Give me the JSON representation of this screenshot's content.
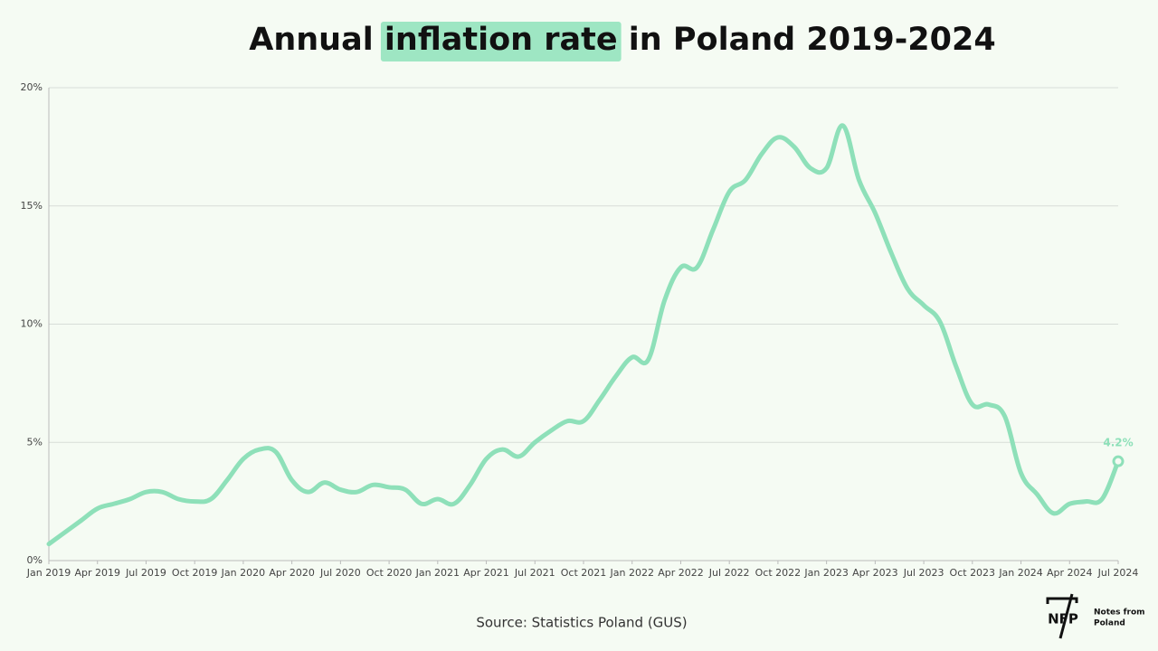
{
  "chart_data": {
    "type": "line",
    "title": "Annual inflation rate in Poland 2019-2024",
    "title_highlight": "inflation rate",
    "highlight_color": "#9ee6c3",
    "source": "Source: Statistics Poland (GUS)",
    "categories": [
      "Jan 2019",
      null,
      null,
      "Apr 2019",
      null,
      null,
      "Jul 2019",
      null,
      null,
      "Oct 2019",
      null,
      null,
      "Jan 2020",
      null,
      null,
      "Apr 2020",
      null,
      null,
      "Jul 2020",
      null,
      null,
      "Oct 2020",
      null,
      null,
      "Jan 2021",
      null,
      null,
      "Apr 2021",
      null,
      null,
      "Jul 2021",
      null,
      null,
      "Oct 2021",
      null,
      null,
      "Jan 2022",
      null,
      null,
      "Apr 2022",
      null,
      null,
      "Jul 2022",
      null,
      null,
      "Oct 2022",
      null,
      null,
      "Jan 2023",
      null,
      null,
      "Apr 2023",
      null,
      null,
      "Jul 2023",
      null,
      null,
      "Oct 2023",
      null,
      null,
      "Jan 2024",
      null,
      null,
      "Apr 2024",
      null,
      null,
      "Jul 2024"
    ],
    "values": [
      0.7,
      1.2,
      1.7,
      2.2,
      2.4,
      2.6,
      2.9,
      2.9,
      2.6,
      2.5,
      2.6,
      3.4,
      4.3,
      4.7,
      4.6,
      3.4,
      2.9,
      3.3,
      3.0,
      2.9,
      3.2,
      3.1,
      3.0,
      2.4,
      2.6,
      2.4,
      3.2,
      4.3,
      4.7,
      4.4,
      5.0,
      5.5,
      5.9,
      5.9,
      6.8,
      7.8,
      8.6,
      8.5,
      11.0,
      12.4,
      12.4,
      14.0,
      15.6,
      16.1,
      17.2,
      17.9,
      17.5,
      16.6,
      16.6,
      18.4,
      16.1,
      14.7,
      13.0,
      11.5,
      10.8,
      10.1,
      8.2,
      6.6,
      6.6,
      6.1,
      3.7,
      2.8,
      2.0,
      2.4,
      2.5,
      2.6,
      4.2
    ],
    "value_labels": [
      null,
      null,
      null,
      null,
      null,
      null,
      null,
      null,
      null,
      null,
      null,
      null,
      null,
      null,
      null,
      null,
      null,
      null,
      null,
      null,
      null,
      null,
      null,
      null,
      null,
      null,
      null,
      null,
      null,
      null,
      null,
      null,
      null,
      null,
      null,
      null,
      null,
      null,
      null,
      null,
      null,
      null,
      null,
      null,
      null,
      null,
      null,
      null,
      null,
      null,
      null,
      null,
      null,
      null,
      null,
      null,
      null,
      null,
      null,
      null,
      null,
      null,
      null,
      null,
      null,
      null,
      "4.2%"
    ],
    "color": "#8ee0b9",
    "ylim": [
      0,
      20
    ],
    "yticks": [
      {
        "value": 0,
        "label": "0%"
      },
      {
        "value": 5,
        "label": "5%"
      },
      {
        "value": 10,
        "label": "10%"
      },
      {
        "value": 15,
        "label": "15%"
      },
      {
        "value": 20,
        "label": "20%"
      }
    ],
    "grid": true
  },
  "brand": {
    "mark": "NFP",
    "name_line1": "Notes from",
    "name_line2": "Poland"
  }
}
